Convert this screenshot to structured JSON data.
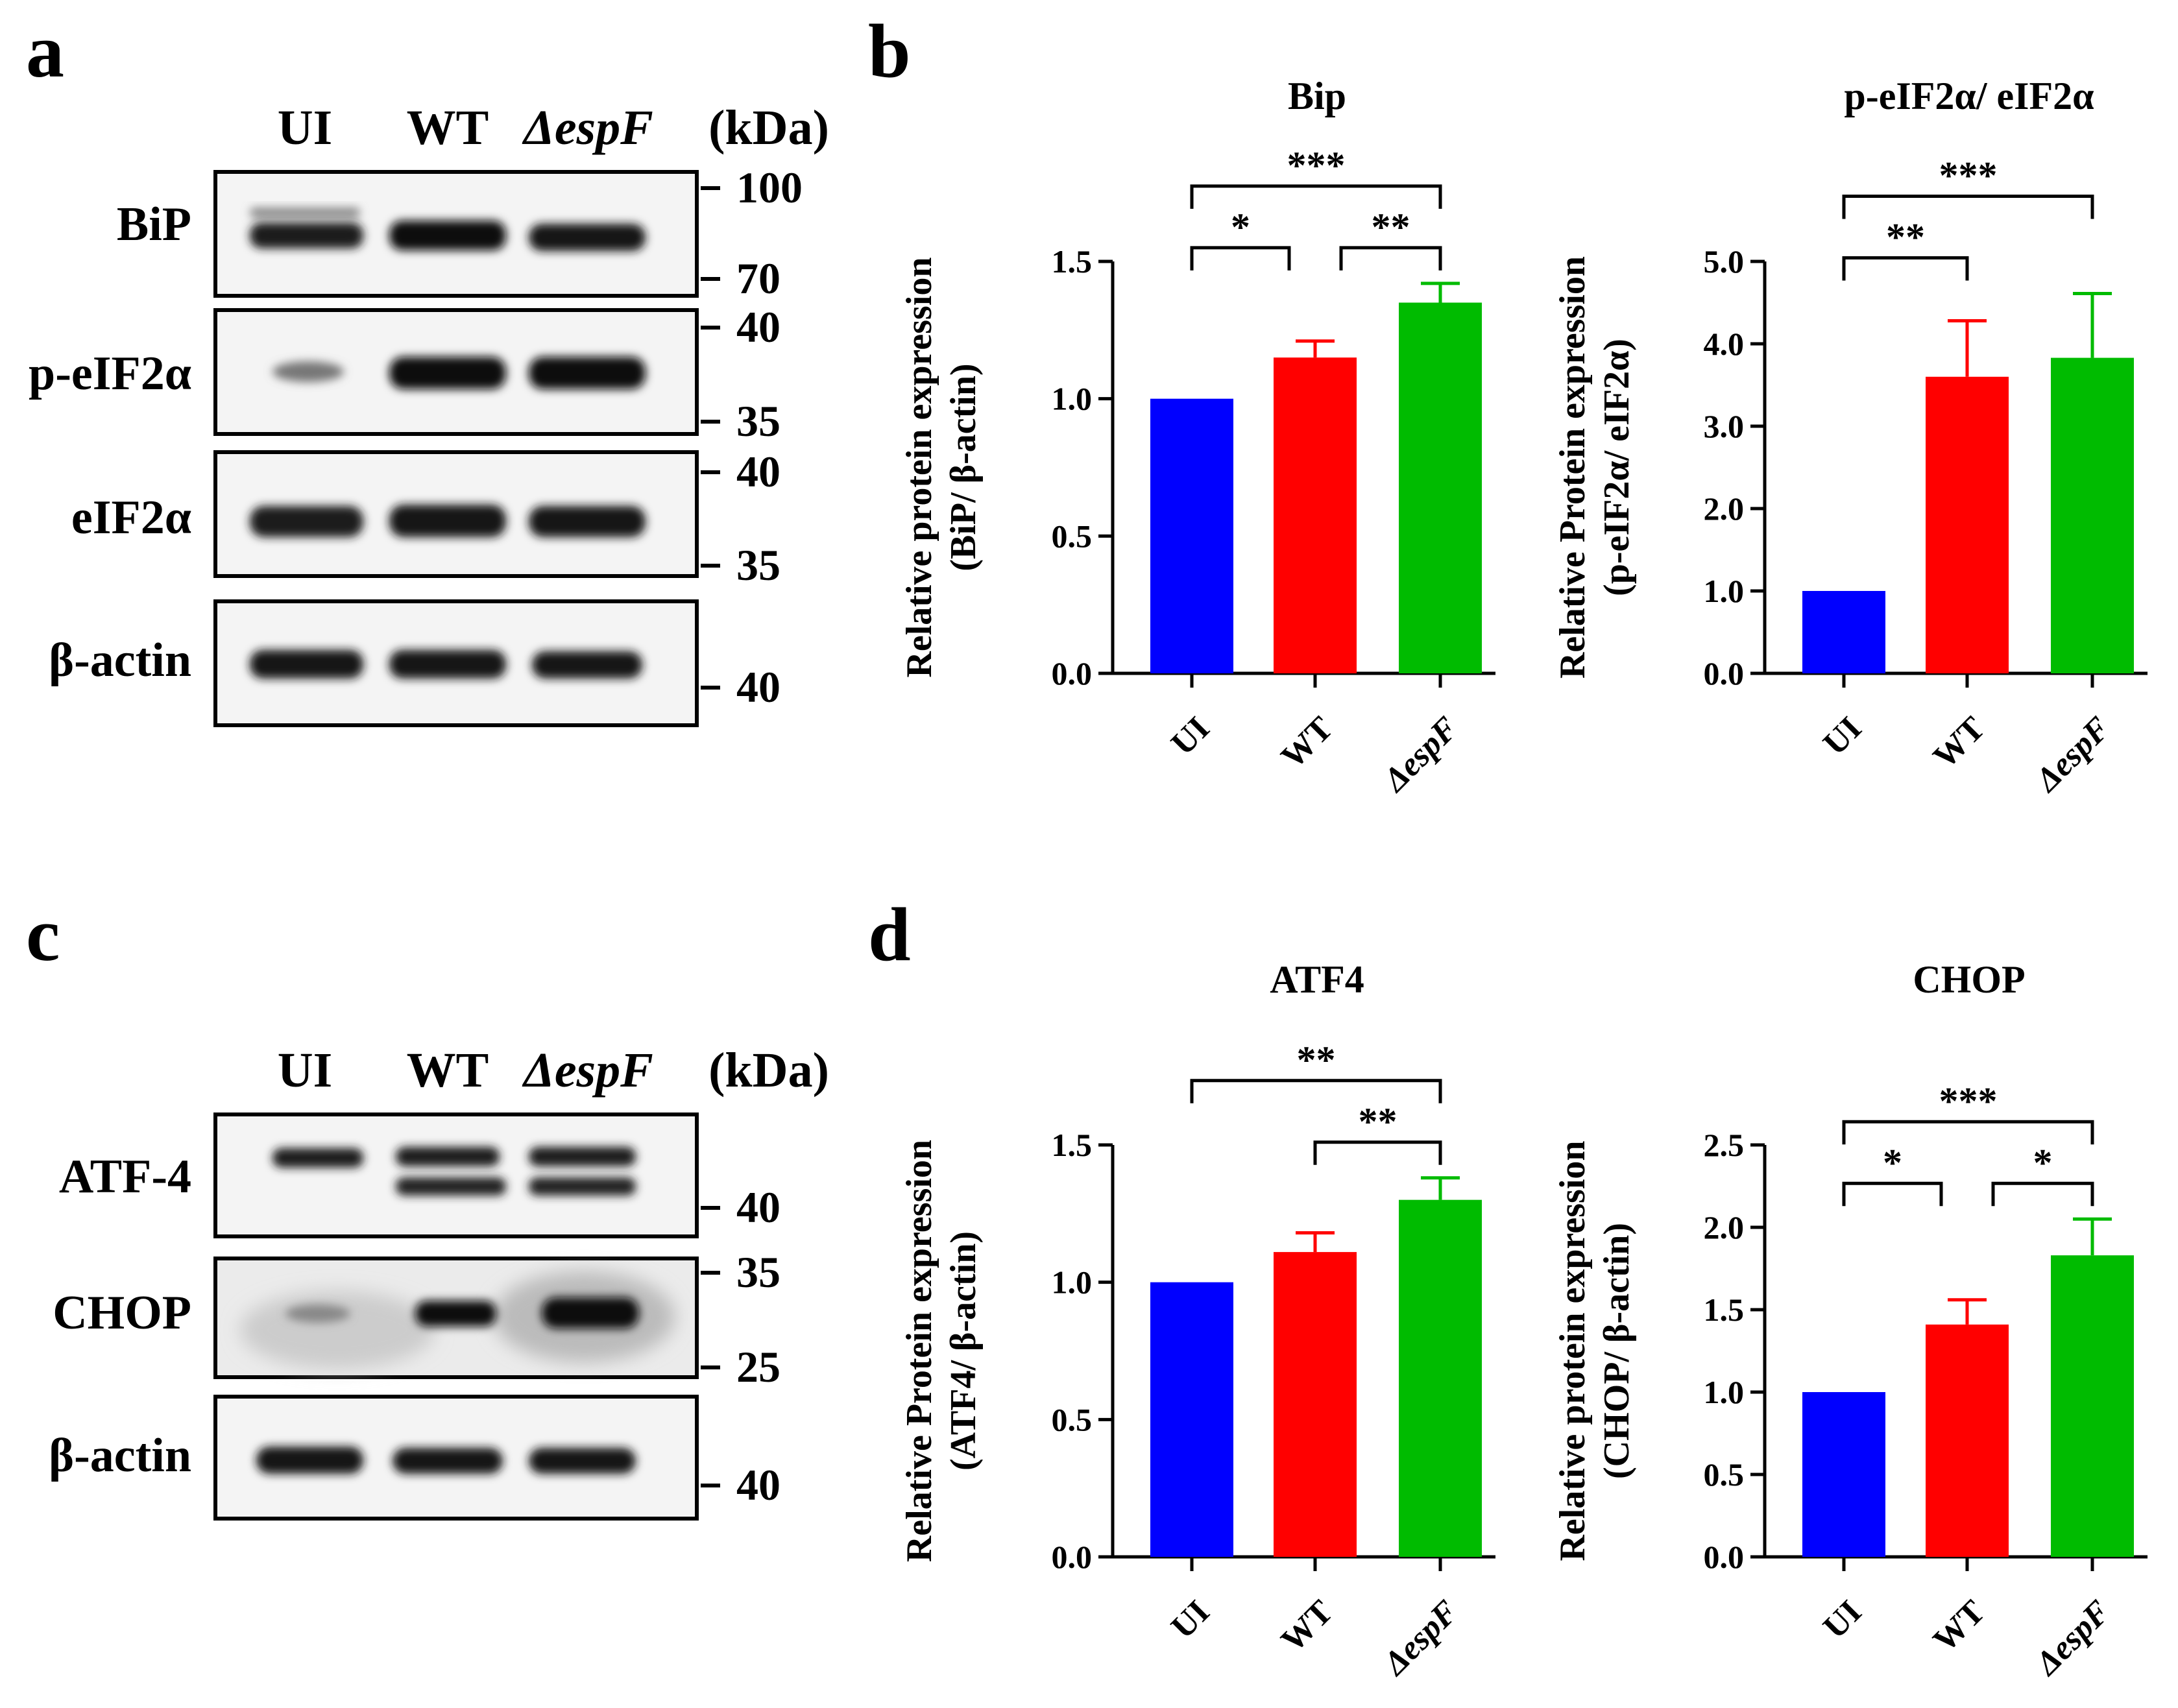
{
  "panel_labels": {
    "a": "a",
    "b": "b",
    "c": "c",
    "d": "d"
  },
  "blot_a": {
    "lanes": [
      "UI",
      "WT",
      "ΔespF"
    ],
    "kda_label": "(kDa)",
    "rows": [
      {
        "label": "BiP",
        "markers": [
          "100",
          "70"
        ]
      },
      {
        "label": "p-eIF2α",
        "markers": [
          "40",
          "35"
        ]
      },
      {
        "label": "eIF2α",
        "markers": [
          "40",
          "35"
        ]
      },
      {
        "label": "β-actin",
        "markers": [
          "40"
        ]
      }
    ]
  },
  "blot_c": {
    "lanes": [
      "UI",
      "WT",
      "ΔespF"
    ],
    "kda_label": "(kDa)",
    "rows": [
      {
        "label": "ATF-4",
        "markers": [
          "40"
        ]
      },
      {
        "label": "CHOP",
        "markers": [
          "35",
          "25"
        ]
      },
      {
        "label": "β-actin",
        "markers": [
          "40"
        ]
      }
    ]
  },
  "colors": {
    "UI": "#0000ff",
    "WT": "#ff0000",
    "ΔespF": "#00bb00"
  },
  "chart_data": [
    {
      "type": "bar",
      "title": "Bip",
      "ylabel_line1": "Relative protein expression",
      "ylabel_line2": "(BiP/ β-actin)",
      "categories": [
        "UI",
        "WT",
        "ΔespF"
      ],
      "values": [
        1.0,
        1.15,
        1.35
      ],
      "errors": [
        0,
        0.06,
        0.07
      ],
      "ylim": [
        0,
        1.5
      ],
      "yticks": [
        "0.0",
        "0.5",
        "1.0",
        "1.5"
      ],
      "significance": [
        {
          "from": "UI",
          "to": "WT",
          "label": "*"
        },
        {
          "from": "WT",
          "to": "ΔespF",
          "label": "**"
        },
        {
          "from": "UI",
          "to": "ΔespF",
          "label": "***"
        }
      ]
    },
    {
      "type": "bar",
      "title": "p-eIF2α/ eIF2α",
      "ylabel_line1": "Relative Protein expression",
      "ylabel_line2": "(p-eIF2α/ eIF2α)",
      "categories": [
        "UI",
        "WT",
        "ΔespF"
      ],
      "values": [
        1.0,
        3.6,
        3.83
      ],
      "errors": [
        0,
        0.68,
        0.78
      ],
      "ylim": [
        0,
        5.0
      ],
      "yticks": [
        "0.0",
        "1.0",
        "2.0",
        "3.0",
        "4.0",
        "5.0"
      ],
      "significance": [
        {
          "from": "UI",
          "to": "WT",
          "label": "**"
        },
        {
          "from": "UI",
          "to": "ΔespF",
          "label": "***"
        }
      ]
    },
    {
      "type": "bar",
      "title": "ATF4",
      "ylabel_line1": "Relative Protein expression",
      "ylabel_line2": "(ATF4/ β-actin)",
      "categories": [
        "UI",
        "WT",
        "ΔespF"
      ],
      "values": [
        1.0,
        1.11,
        1.3
      ],
      "errors": [
        0,
        0.07,
        0.08
      ],
      "ylim": [
        0,
        1.5
      ],
      "yticks": [
        "0.0",
        "0.5",
        "1.0",
        "1.5"
      ],
      "significance": [
        {
          "from": "WT",
          "to": "ΔespF",
          "label": "**"
        },
        {
          "from": "UI",
          "to": "ΔespF",
          "label": "**"
        }
      ]
    },
    {
      "type": "bar",
      "title": "CHOP",
      "ylabel_line1": "Relative protein expression",
      "ylabel_line2": "(CHOP/ β-actin)",
      "categories": [
        "UI",
        "WT",
        "ΔespF"
      ],
      "values": [
        1.0,
        1.41,
        1.83
      ],
      "errors": [
        0,
        0.15,
        0.22
      ],
      "ylim": [
        0,
        2.5
      ],
      "yticks": [
        "0.0",
        "0.5",
        "1.0",
        "1.5",
        "2.0",
        "2.5"
      ],
      "significance": [
        {
          "from": "UI",
          "to": "WT",
          "label": "*"
        },
        {
          "from": "WT",
          "to": "ΔespF",
          "label": "*"
        },
        {
          "from": "UI",
          "to": "ΔespF",
          "label": "***"
        }
      ]
    }
  ]
}
